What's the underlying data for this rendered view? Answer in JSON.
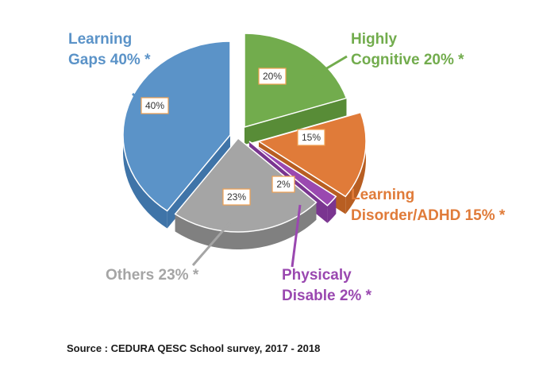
{
  "chart_data": {
    "type": "pie",
    "slices": [
      {
        "label_lines": [
          "Learning",
          "Gaps 40% *"
        ],
        "pct_label": "40%",
        "value": 40,
        "color": "#5b93c8",
        "side": "#3f74a8"
      },
      {
        "label_lines": [
          "Highly",
          "Cognitive 20% *"
        ],
        "pct_label": "20%",
        "value": 20,
        "color": "#72ac4d",
        "side": "#588c37"
      },
      {
        "label_lines": [
          "Learning",
          "Disorder/ADHD 15% *"
        ],
        "pct_label": "15%",
        "value": 15,
        "color": "#e07b39",
        "side": "#b85e22"
      },
      {
        "label_lines": [
          "Physicaly",
          "Disable 2% *"
        ],
        "pct_label": "2%",
        "value": 2,
        "color": "#9a48b0",
        "side": "#7a3590"
      },
      {
        "label_lines": [
          "Others 23% *"
        ],
        "pct_label": "23%",
        "value": 23,
        "color": "#a5a5a5",
        "side": "#808080"
      }
    ]
  },
  "source": "Source : CEDURA QESC School survey, 2017 - 2018"
}
